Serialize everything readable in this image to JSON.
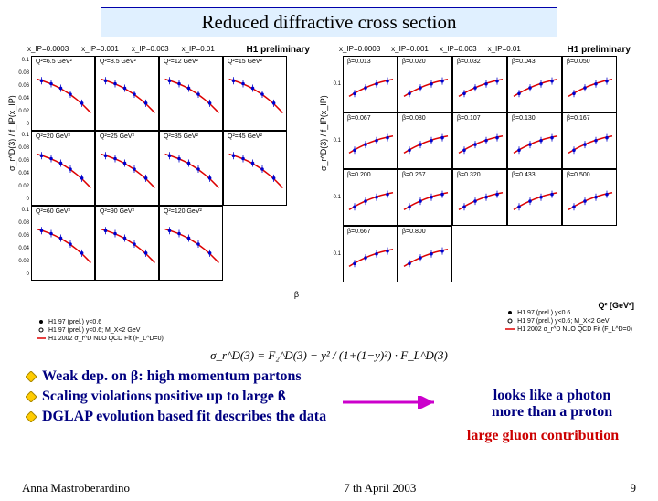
{
  "title": "Reduced diffractive cross section",
  "left_plot": {
    "prelim": "H1 preliminary",
    "yaxis": "σ_r^D(3) / f_IP(x_IP)",
    "xaxis": "β",
    "xip": [
      "x_IP=0.0003",
      "x_IP=0.001",
      "x_IP=0.003",
      "x_IP=0.01"
    ],
    "panels": [
      {
        "q2": "Q²=6.5 GeV²"
      },
      {
        "q2": "Q²=8.5 GeV²"
      },
      {
        "q2": "Q²=12 GeV²"
      },
      {
        "q2": "Q²=15 GeV²"
      },
      {
        "q2": "Q²=20 GeV²"
      },
      {
        "q2": "Q²=25 GeV²"
      },
      {
        "q2": "Q²=35 GeV²"
      },
      {
        "q2": "Q²=45 GeV²"
      },
      {
        "q2": "Q²=60 GeV²"
      },
      {
        "q2": "Q²=90 GeV²"
      },
      {
        "q2": "Q²=120 GeV²"
      },
      {
        "q2": ""
      }
    ],
    "yticks": [
      "0.1",
      "0.08",
      "0.06",
      "0.04",
      "0.02",
      "0"
    ],
    "legend": [
      {
        "marker": "dot-filled",
        "text": "H1 97 (prel.) y<0.6"
      },
      {
        "marker": "dot-open",
        "text": "H1 97 (prel.) y<0.6; M_X<2 GeV"
      },
      {
        "marker": "line-red",
        "text": "H1 2002 σ_r^D NLO QCD Fit (F_L^D=0)"
      }
    ],
    "curve_color": "#dd0000",
    "point_color": "#0000cc"
  },
  "right_plot": {
    "prelim": "H1 preliminary",
    "yaxis": "σ_r^D(3) / f_IP(x_IP)",
    "xaxis": "Q² [GeV²]",
    "xip": [
      "x_IP=0.0003",
      "x_IP=0.001",
      "x_IP=0.003",
      "x_IP=0.01"
    ],
    "panels": [
      {
        "b": "β=0.013"
      },
      {
        "b": "β=0.020"
      },
      {
        "b": "β=0.032"
      },
      {
        "b": "β=0.043"
      },
      {
        "b": "β=0.050"
      },
      {
        "b": "β=0.067"
      },
      {
        "b": "β=0.080"
      },
      {
        "b": "β=0.107"
      },
      {
        "b": "β=0.130"
      },
      {
        "b": "β=0.167"
      },
      {
        "b": "β=0.200"
      },
      {
        "b": "β=0.267"
      },
      {
        "b": "β=0.320"
      },
      {
        "b": "β=0.433"
      },
      {
        "b": "β=0.500"
      },
      {
        "b": "β=0.667"
      },
      {
        "b": "β=0.800"
      },
      {
        "b": ""
      },
      {
        "b": ""
      },
      {
        "b": ""
      }
    ],
    "yticks": [
      "0.1"
    ],
    "legend": [
      {
        "marker": "dot-filled",
        "text": "H1 97 (prel.) y<0.6"
      },
      {
        "marker": "dot-open",
        "text": "H1 97 (prel.) y<0.6; M_X<2 GeV"
      },
      {
        "marker": "line-red",
        "text": "H1 2002 σ_r^D NLO QCD Fit (F_L^D=0)"
      }
    ],
    "curve_color": "#dd0000",
    "point_color": "#0000cc"
  },
  "formula": "σ_r^D(3) = F₂^D(3) − y² / (1+(1−y)²) · F_L^D(3)",
  "bullets": [
    "Weak dep. on β: high momentum partons",
    "Scaling violations positive up to large ß",
    "DGLAP evolution based fit describes the data"
  ],
  "callout1_l1": "looks like a photon",
  "callout1_l2": "more than a proton",
  "callout2": "large gluon contribution",
  "arrow_color": "#cc00cc",
  "bullet_color_main": "#000080",
  "footer": {
    "author": "Anna Mastroberardino",
    "date": "7 th April 2003",
    "page": "9"
  }
}
